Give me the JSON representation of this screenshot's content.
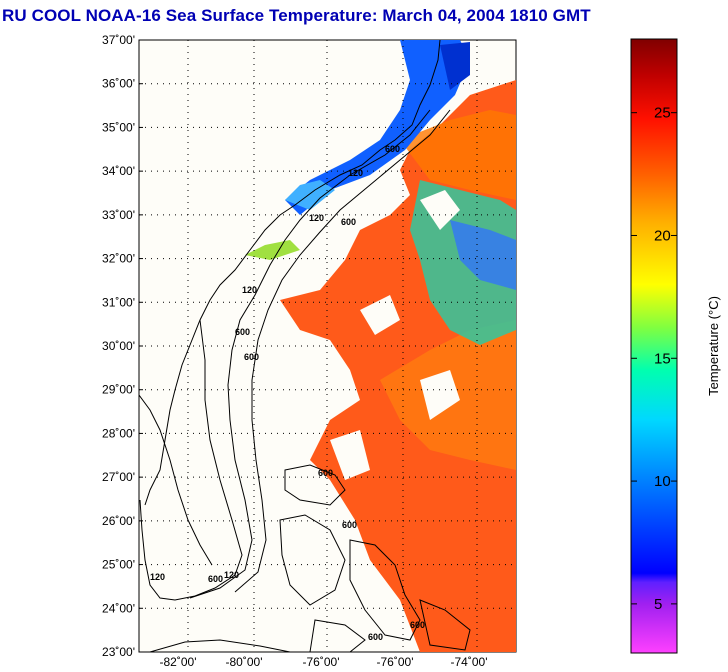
{
  "title": "RU COOL  NOAA-16  Sea Surface Temperature:  March 04, 2004 1810 GMT",
  "map": {
    "lat_ticks": [
      "37˚00'",
      "36˚00'",
      "35˚00'",
      "34˚00'",
      "33˚00'",
      "32˚00'",
      "31˚00'",
      "30˚00'",
      "29˚00'",
      "28˚00'",
      "27˚00'",
      "26˚00'",
      "25˚00'",
      "24˚00'",
      "23˚00'"
    ],
    "lon_ticks": [
      "-82˚00'",
      "-80˚00'",
      "-76˚00'",
      "-76˚00'",
      "-74˚00'"
    ],
    "contour_labels": [
      "120",
      "600",
      "120",
      "600",
      "120",
      "600",
      "600",
      "120",
      "600",
      "120",
      "600",
      "600",
      "600",
      "600"
    ]
  },
  "colorbar": {
    "label": "Temperature (°C)",
    "ticks": [
      "25",
      "20",
      "15",
      "10",
      "5"
    ],
    "tick_values": [
      25,
      20,
      15,
      10,
      5
    ],
    "range": [
      3,
      28
    ]
  }
}
